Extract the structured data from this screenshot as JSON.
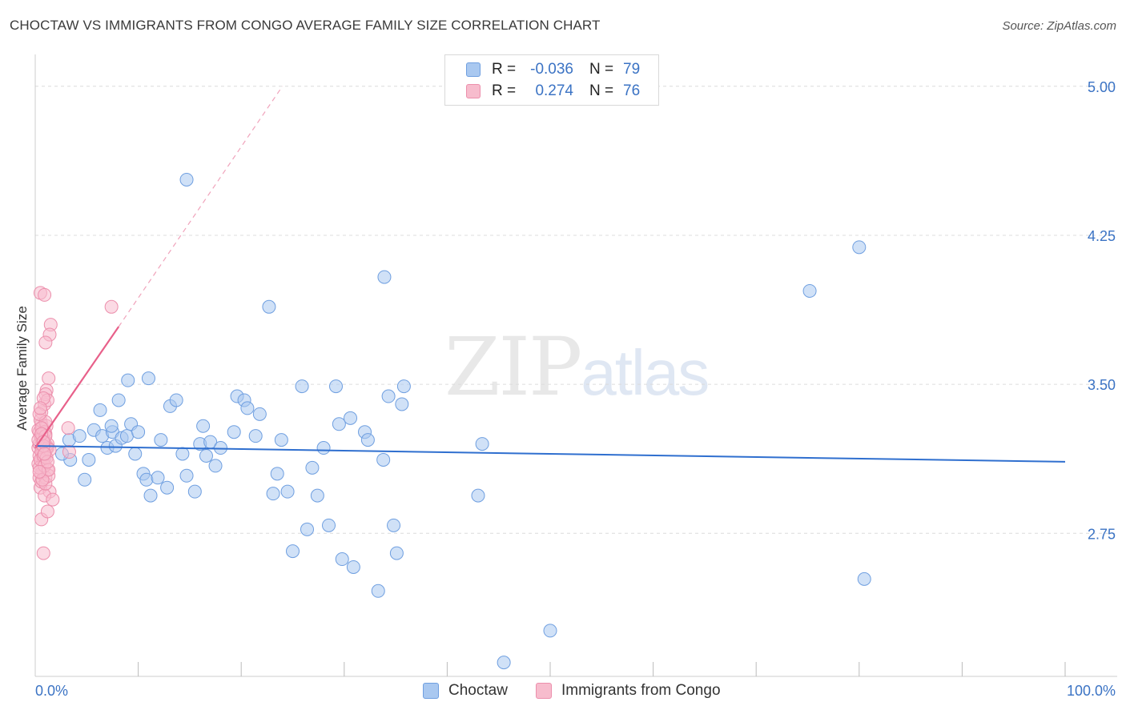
{
  "title": "CHOCTAW VS IMMIGRANTS FROM CONGO AVERAGE FAMILY SIZE CORRELATION CHART",
  "source": "Source: ZipAtlas.com",
  "watermark": {
    "zip": "ZIP",
    "atlas": "atlas"
  },
  "legend": {
    "r_label": "R =",
    "n_label": "N =",
    "rows": [
      {
        "r": "-0.036",
        "n": "79",
        "color": "#a9c8f0",
        "stroke": "#6f9fe0"
      },
      {
        "r": "0.274",
        "n": "76",
        "color": "#f7bccd",
        "stroke": "#ec8fac"
      }
    ]
  },
  "bottom_legend": [
    {
      "label": "Choctaw",
      "color": "#a9c8f0",
      "stroke": "#6f9fe0"
    },
    {
      "label": "Immigrants from Congo",
      "color": "#f7bccd",
      "stroke": "#ec8fac"
    }
  ],
  "chart_data": {
    "type": "scatter",
    "title": "CHOCTAW VS IMMIGRANTS FROM CONGO AVERAGE FAMILY SIZE CORRELATION CHART",
    "xlabel": "",
    "ylabel": "Average Family Size",
    "xlim": [
      0,
      100
    ],
    "ylim": [
      2.03,
      5.12
    ],
    "x_tick_labels": [
      "0.0%",
      "100.0%"
    ],
    "y_ticks": [
      2.75,
      3.5,
      4.25,
      5.0
    ],
    "y_tick_labels": [
      "2.75",
      "3.50",
      "4.25",
      "5.00"
    ],
    "grid": true,
    "legend_position": "top-center",
    "series": [
      {
        "name": "Choctaw",
        "color": "#a9c8f0",
        "stroke": "#6f9fe0",
        "trend": {
          "x": [
            0,
            100
          ],
          "y": [
            3.19,
            3.11
          ],
          "color": "#2f6fcf"
        },
        "points": [
          [
            3.4,
            3.12
          ],
          [
            2.6,
            3.15
          ],
          [
            3.3,
            3.22
          ],
          [
            4.3,
            3.24
          ],
          [
            4.8,
            3.02
          ],
          [
            5.2,
            3.12
          ],
          [
            5.7,
            3.27
          ],
          [
            6.3,
            3.37
          ],
          [
            6.5,
            3.24
          ],
          [
            7.0,
            3.18
          ],
          [
            7.5,
            3.26
          ],
          [
            7.8,
            3.19
          ],
          [
            7.4,
            3.29
          ],
          [
            8.1,
            3.42
          ],
          [
            8.4,
            3.23
          ],
          [
            8.9,
            3.24
          ],
          [
            9.3,
            3.3
          ],
          [
            9.7,
            3.15
          ],
          [
            10.0,
            3.26
          ],
          [
            10.5,
            3.05
          ],
          [
            10.8,
            3.02
          ],
          [
            11.2,
            2.94
          ],
          [
            11.9,
            3.03
          ],
          [
            12.2,
            3.22
          ],
          [
            12.8,
            2.98
          ],
          [
            13.1,
            3.39
          ],
          [
            13.7,
            3.42
          ],
          [
            14.3,
            3.15
          ],
          [
            14.7,
            3.04
          ],
          [
            15.5,
            2.96
          ],
          [
            16.0,
            3.2
          ],
          [
            16.3,
            3.29
          ],
          [
            16.6,
            3.14
          ],
          [
            17.0,
            3.21
          ],
          [
            17.5,
            3.09
          ],
          [
            18.0,
            3.18
          ],
          [
            19.3,
            3.26
          ],
          [
            19.6,
            3.44
          ],
          [
            20.3,
            3.42
          ],
          [
            20.6,
            3.38
          ],
          [
            21.4,
            3.24
          ],
          [
            21.8,
            3.35
          ],
          [
            22.7,
            3.89
          ],
          [
            23.1,
            2.95
          ],
          [
            23.5,
            3.05
          ],
          [
            23.9,
            3.22
          ],
          [
            24.5,
            2.96
          ],
          [
            25.0,
            2.66
          ],
          [
            25.9,
            3.49
          ],
          [
            26.4,
            2.77
          ],
          [
            26.9,
            3.08
          ],
          [
            27.4,
            2.94
          ],
          [
            28.0,
            3.18
          ],
          [
            28.5,
            2.79
          ],
          [
            29.2,
            3.49
          ],
          [
            29.5,
            3.3
          ],
          [
            29.8,
            2.62
          ],
          [
            30.6,
            3.33
          ],
          [
            30.9,
            2.58
          ],
          [
            32.0,
            3.26
          ],
          [
            32.3,
            3.22
          ],
          [
            33.3,
            2.46
          ],
          [
            33.9,
            4.04
          ],
          [
            33.8,
            3.12
          ],
          [
            34.3,
            3.44
          ],
          [
            34.8,
            2.79
          ],
          [
            35.1,
            2.65
          ],
          [
            35.6,
            3.4
          ],
          [
            35.8,
            3.49
          ],
          [
            43.0,
            2.94
          ],
          [
            43.4,
            3.2
          ],
          [
            45.5,
            2.1
          ],
          [
            50.0,
            2.26
          ],
          [
            75.2,
            3.97
          ],
          [
            80.0,
            4.19
          ],
          [
            80.5,
            2.52
          ],
          [
            14.7,
            4.53
          ],
          [
            9.0,
            3.52
          ],
          [
            11.0,
            3.53
          ]
        ]
      },
      {
        "name": "Immigrants from Congo",
        "color": "#f7bccd",
        "stroke": "#ec8fac",
        "trend": {
          "x": [
            0,
            8.1
          ],
          "y": [
            3.18,
            3.79
          ],
          "color": "#e8608a",
          "dash_to": [
            24.0,
            5.0
          ]
        },
        "points": [
          [
            0.3,
            3.18
          ],
          [
            0.4,
            3.26
          ],
          [
            0.5,
            3.12
          ],
          [
            0.6,
            3.3
          ],
          [
            0.7,
            3.08
          ],
          [
            0.8,
            3.22
          ],
          [
            0.4,
            3.03
          ],
          [
            0.5,
            2.98
          ],
          [
            0.6,
            3.36
          ],
          [
            0.7,
            3.15
          ],
          [
            0.3,
            3.1
          ],
          [
            0.4,
            3.2
          ],
          [
            0.5,
            3.24
          ],
          [
            0.6,
            3.05
          ],
          [
            0.7,
            3.28
          ],
          [
            0.8,
            3.17
          ],
          [
            0.9,
            3.13
          ],
          [
            1.0,
            3.25
          ],
          [
            1.1,
            3.19
          ],
          [
            1.2,
            3.07
          ],
          [
            0.3,
            3.27
          ],
          [
            0.4,
            3.14
          ],
          [
            0.5,
            3.32
          ],
          [
            0.6,
            3.01
          ],
          [
            0.7,
            3.21
          ],
          [
            0.8,
            3.11
          ],
          [
            0.9,
            3.4
          ],
          [
            1.0,
            3.03
          ],
          [
            1.1,
            3.29
          ],
          [
            1.2,
            3.18
          ],
          [
            0.5,
            3.96
          ],
          [
            0.9,
            3.95
          ],
          [
            1.5,
            3.8
          ],
          [
            1.4,
            3.75
          ],
          [
            1.0,
            3.71
          ],
          [
            1.3,
            3.53
          ],
          [
            1.1,
            3.47
          ],
          [
            1.0,
            3.45
          ],
          [
            1.2,
            3.42
          ],
          [
            0.8,
            3.43
          ],
          [
            0.6,
            2.82
          ],
          [
            1.2,
            2.86
          ],
          [
            1.4,
            2.96
          ],
          [
            0.9,
            2.94
          ],
          [
            1.7,
            2.92
          ],
          [
            1.0,
            3.0
          ],
          [
            1.3,
            3.04
          ],
          [
            0.8,
            2.65
          ],
          [
            1.1,
            3.18
          ],
          [
            0.4,
            3.08
          ],
          [
            0.6,
            3.16
          ],
          [
            0.7,
            3.23
          ],
          [
            1.0,
            3.31
          ],
          [
            0.9,
            3.26
          ],
          [
            0.5,
            3.12
          ],
          [
            0.4,
            3.35
          ],
          [
            0.8,
            3.14
          ],
          [
            1.2,
            3.2
          ],
          [
            1.4,
            3.17
          ],
          [
            0.3,
            3.22
          ],
          [
            0.6,
            3.28
          ],
          [
            0.9,
            3.09
          ],
          [
            1.1,
            3.13
          ],
          [
            0.7,
            3.02
          ],
          [
            0.5,
            3.38
          ],
          [
            1.0,
            3.24
          ],
          [
            1.3,
            3.07
          ],
          [
            0.8,
            3.19
          ],
          [
            0.6,
            3.25
          ],
          [
            1.2,
            3.11
          ],
          [
            3.2,
            3.28
          ],
          [
            3.3,
            3.16
          ],
          [
            7.4,
            3.89
          ],
          [
            0.4,
            3.06
          ],
          [
            0.8,
            3.21
          ],
          [
            0.9,
            3.15
          ]
        ]
      }
    ]
  }
}
